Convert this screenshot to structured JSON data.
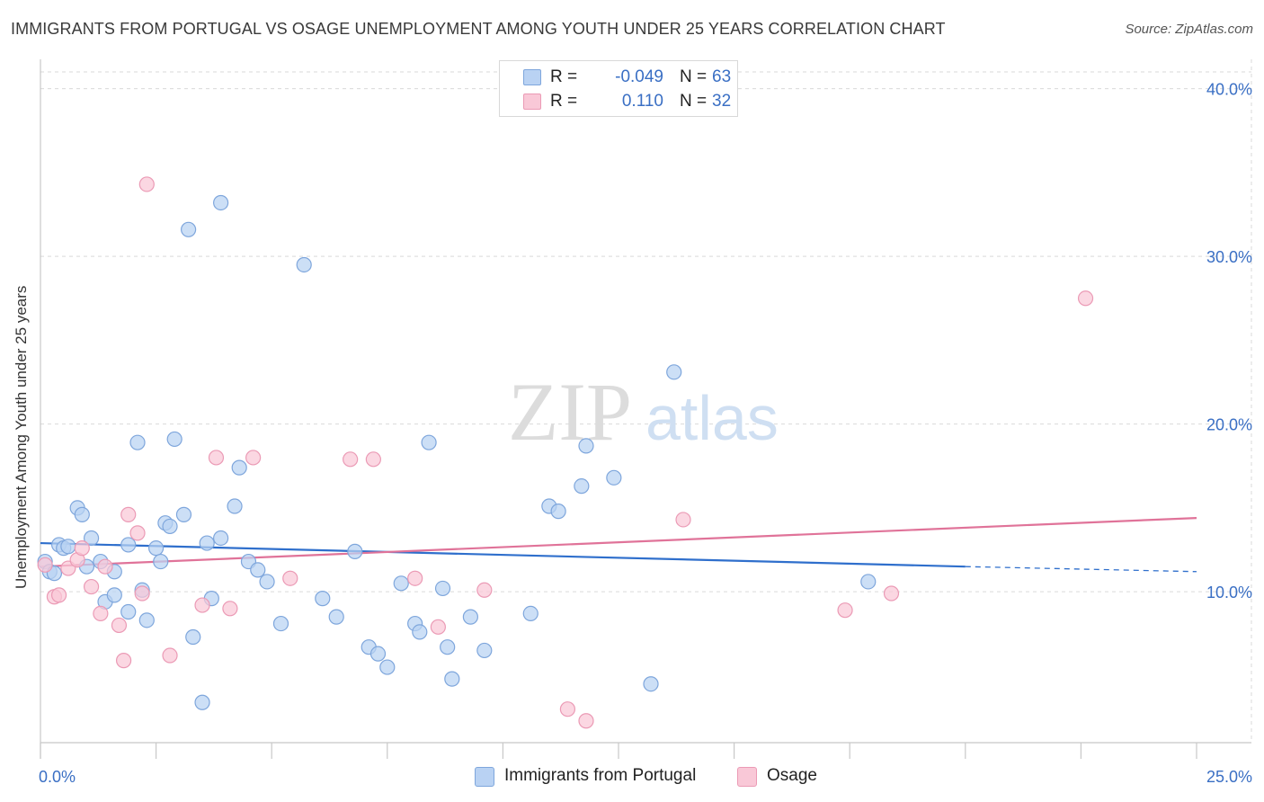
{
  "title": "IMMIGRANTS FROM PORTUGAL VS OSAGE UNEMPLOYMENT AMONG YOUTH UNDER 25 YEARS CORRELATION CHART",
  "source": "Source: ZipAtlas.com",
  "watermark": {
    "zip": "ZIP",
    "atlas": "atlas"
  },
  "legend_top": [
    {
      "r_label": "R =",
      "r_value": "-0.049",
      "n_label": "N =",
      "n_value": "63"
    },
    {
      "r_label": "R =",
      "r_value": "0.110",
      "n_label": "N =",
      "n_value": "32"
    }
  ],
  "legend_bottom": [
    {
      "label": "Immigrants from Portugal"
    },
    {
      "label": "Osage"
    }
  ],
  "colors": {
    "blue_fill": "#b9d2f3",
    "blue_stroke": "#7ea6dc",
    "blue_line": "#2f6fcc",
    "pink_fill": "#f9c8d7",
    "pink_stroke": "#eb9ab5",
    "pink_line": "#e07399",
    "grid": "#d9d9d9",
    "axis_text": "#3a6fc4"
  },
  "chart_data": {
    "type": "scatter",
    "title": "IMMIGRANTS FROM PORTUGAL VS OSAGE UNEMPLOYMENT AMONG YOUTH UNDER 25 YEARS CORRELATION CHART",
    "xlabel": "",
    "ylabel": "Unemployment Among Youth under 25 years",
    "xlim": [
      0,
      25
    ],
    "ylim": [
      1,
      41
    ],
    "x_tick_labels": [
      "0.0%",
      "25.0%"
    ],
    "y_ticks": [
      10,
      20,
      30,
      40
    ],
    "y_tick_labels": [
      "10.0%",
      "20.0%",
      "30.0%",
      "40.0%"
    ],
    "grid": true,
    "legend_position": "top-center",
    "series": [
      {
        "name": "Immigrants from Portugal",
        "r": -0.049,
        "n": 63,
        "trend": {
          "x0": 0,
          "y0": 12.9,
          "x1": 20,
          "y1": 11.5,
          "dashed_to_x": 25,
          "dashed_to_y": 11.2
        },
        "points": [
          [
            0.1,
            11.8
          ],
          [
            0.2,
            11.2
          ],
          [
            0.3,
            11.1
          ],
          [
            0.4,
            12.8
          ],
          [
            0.5,
            12.6
          ],
          [
            0.6,
            12.7
          ],
          [
            0.8,
            15.0
          ],
          [
            0.9,
            14.6
          ],
          [
            1.0,
            11.5
          ],
          [
            1.1,
            13.2
          ],
          [
            1.3,
            11.8
          ],
          [
            1.4,
            9.4
          ],
          [
            1.6,
            9.8
          ],
          [
            1.6,
            11.2
          ],
          [
            1.9,
            8.8
          ],
          [
            1.9,
            12.8
          ],
          [
            2.1,
            18.9
          ],
          [
            2.2,
            10.1
          ],
          [
            2.3,
            8.3
          ],
          [
            2.5,
            12.6
          ],
          [
            2.6,
            11.8
          ],
          [
            2.7,
            14.1
          ],
          [
            2.8,
            13.9
          ],
          [
            2.9,
            19.1
          ],
          [
            3.1,
            14.6
          ],
          [
            3.2,
            31.6
          ],
          [
            3.3,
            7.3
          ],
          [
            3.5,
            3.4
          ],
          [
            3.6,
            12.9
          ],
          [
            3.7,
            9.6
          ],
          [
            3.9,
            13.2
          ],
          [
            3.9,
            33.2
          ],
          [
            4.2,
            15.1
          ],
          [
            4.3,
            17.4
          ],
          [
            4.5,
            11.8
          ],
          [
            4.7,
            11.3
          ],
          [
            4.9,
            10.6
          ],
          [
            5.2,
            8.1
          ],
          [
            5.7,
            29.5
          ],
          [
            6.1,
            9.6
          ],
          [
            6.4,
            8.5
          ],
          [
            6.8,
            12.4
          ],
          [
            7.1,
            6.7
          ],
          [
            7.3,
            6.3
          ],
          [
            7.5,
            5.5
          ],
          [
            7.8,
            10.5
          ],
          [
            8.1,
            8.1
          ],
          [
            8.2,
            7.6
          ],
          [
            8.4,
            18.9
          ],
          [
            8.7,
            10.2
          ],
          [
            8.8,
            6.7
          ],
          [
            8.9,
            4.8
          ],
          [
            9.3,
            8.5
          ],
          [
            9.6,
            6.5
          ],
          [
            10.6,
            8.7
          ],
          [
            11.0,
            15.1
          ],
          [
            11.2,
            14.8
          ],
          [
            11.7,
            16.3
          ],
          [
            11.8,
            18.7
          ],
          [
            12.4,
            16.8
          ],
          [
            13.2,
            4.5
          ],
          [
            13.7,
            23.1
          ],
          [
            17.9,
            10.6
          ]
        ]
      },
      {
        "name": "Osage",
        "r": 0.11,
        "n": 32,
        "trend": {
          "x0": 0,
          "y0": 11.5,
          "x1": 25,
          "y1": 14.4
        },
        "points": [
          [
            0.1,
            11.6
          ],
          [
            0.3,
            9.7
          ],
          [
            0.4,
            9.8
          ],
          [
            0.6,
            11.4
          ],
          [
            0.8,
            11.9
          ],
          [
            0.9,
            12.6
          ],
          [
            1.1,
            10.3
          ],
          [
            1.3,
            8.7
          ],
          [
            1.4,
            11.5
          ],
          [
            1.7,
            8.0
          ],
          [
            1.8,
            5.9
          ],
          [
            1.9,
            14.6
          ],
          [
            2.1,
            13.5
          ],
          [
            2.2,
            9.9
          ],
          [
            2.3,
            34.3
          ],
          [
            2.8,
            6.2
          ],
          [
            3.5,
            9.2
          ],
          [
            3.8,
            18.0
          ],
          [
            4.1,
            9.0
          ],
          [
            4.6,
            18.0
          ],
          [
            5.4,
            10.8
          ],
          [
            6.7,
            17.9
          ],
          [
            7.2,
            17.9
          ],
          [
            8.1,
            10.8
          ],
          [
            8.6,
            7.9
          ],
          [
            9.6,
            10.1
          ],
          [
            11.4,
            3.0
          ],
          [
            11.8,
            2.3
          ],
          [
            13.9,
            14.3
          ],
          [
            17.4,
            8.9
          ],
          [
            18.4,
            9.9
          ],
          [
            22.6,
            27.5
          ]
        ]
      }
    ]
  }
}
